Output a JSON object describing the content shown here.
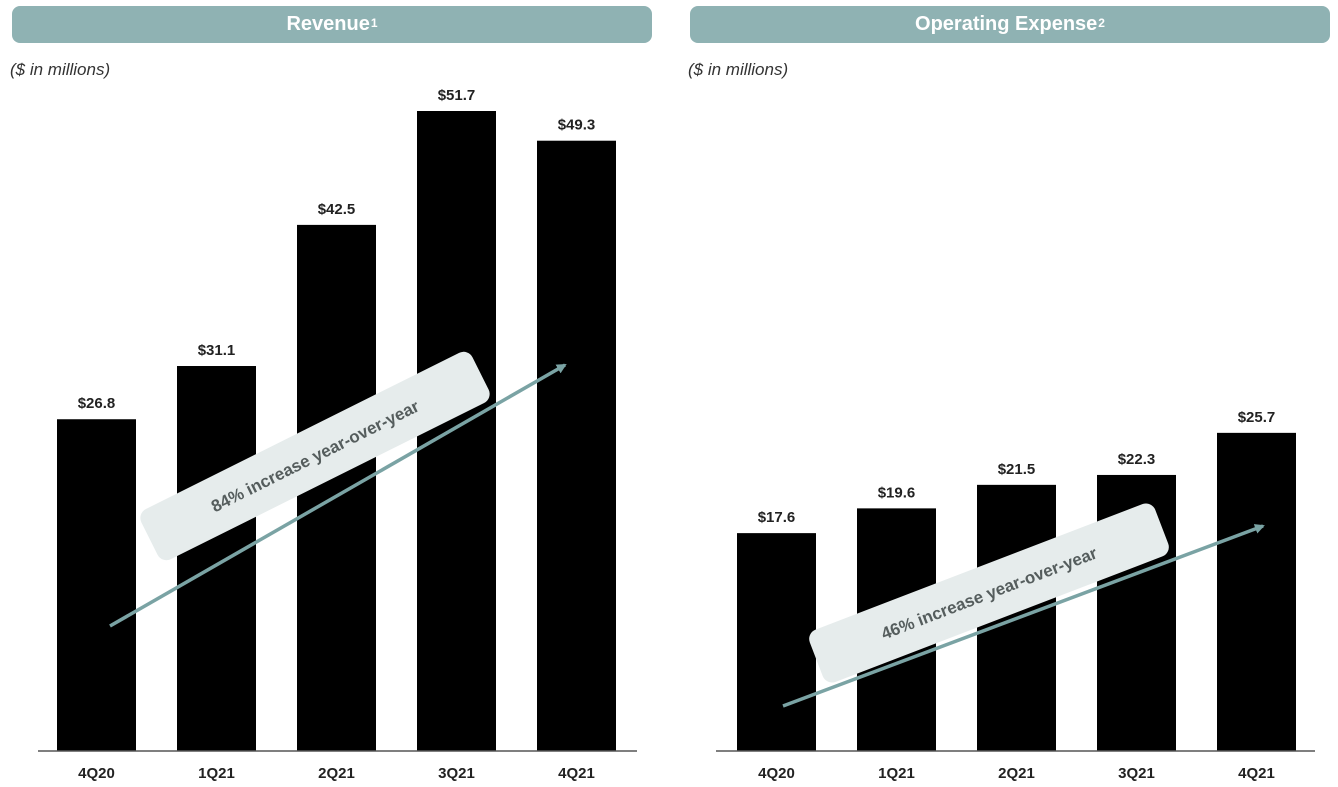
{
  "colors": {
    "header_bg": "#8fb2b3",
    "bar": "#000000",
    "arrow": "#7aa3a4",
    "callout_bg": "#e6ecec",
    "axis": "#555555"
  },
  "chart_data": [
    {
      "type": "bar",
      "title": "Revenue",
      "title_superscript": "1",
      "subtitle": "($ in millions)",
      "categories": [
        "4Q20",
        "1Q21",
        "2Q21",
        "3Q21",
        "4Q21"
      ],
      "values": [
        26.8,
        31.1,
        42.5,
        51.7,
        49.3
      ],
      "value_labels": [
        "$26.8",
        "$31.1",
        "$42.5",
        "$51.7",
        "$49.3"
      ],
      "annotation": "84% increase year-over-year",
      "ylim": [
        0,
        51.7
      ],
      "grid": false,
      "legend": "none"
    },
    {
      "type": "bar",
      "title": "Operating Expense",
      "title_superscript": "2",
      "subtitle": "($ in millions)",
      "categories": [
        "4Q20",
        "1Q21",
        "2Q21",
        "3Q21",
        "4Q21"
      ],
      "values": [
        17.6,
        19.6,
        21.5,
        22.3,
        25.7
      ],
      "value_labels": [
        "$17.6",
        "$19.6",
        "$21.5",
        "$22.3",
        "$25.7"
      ],
      "annotation": "46% increase year-over-year",
      "ylim": [
        0,
        51.7
      ],
      "grid": false,
      "legend": "none"
    }
  ]
}
